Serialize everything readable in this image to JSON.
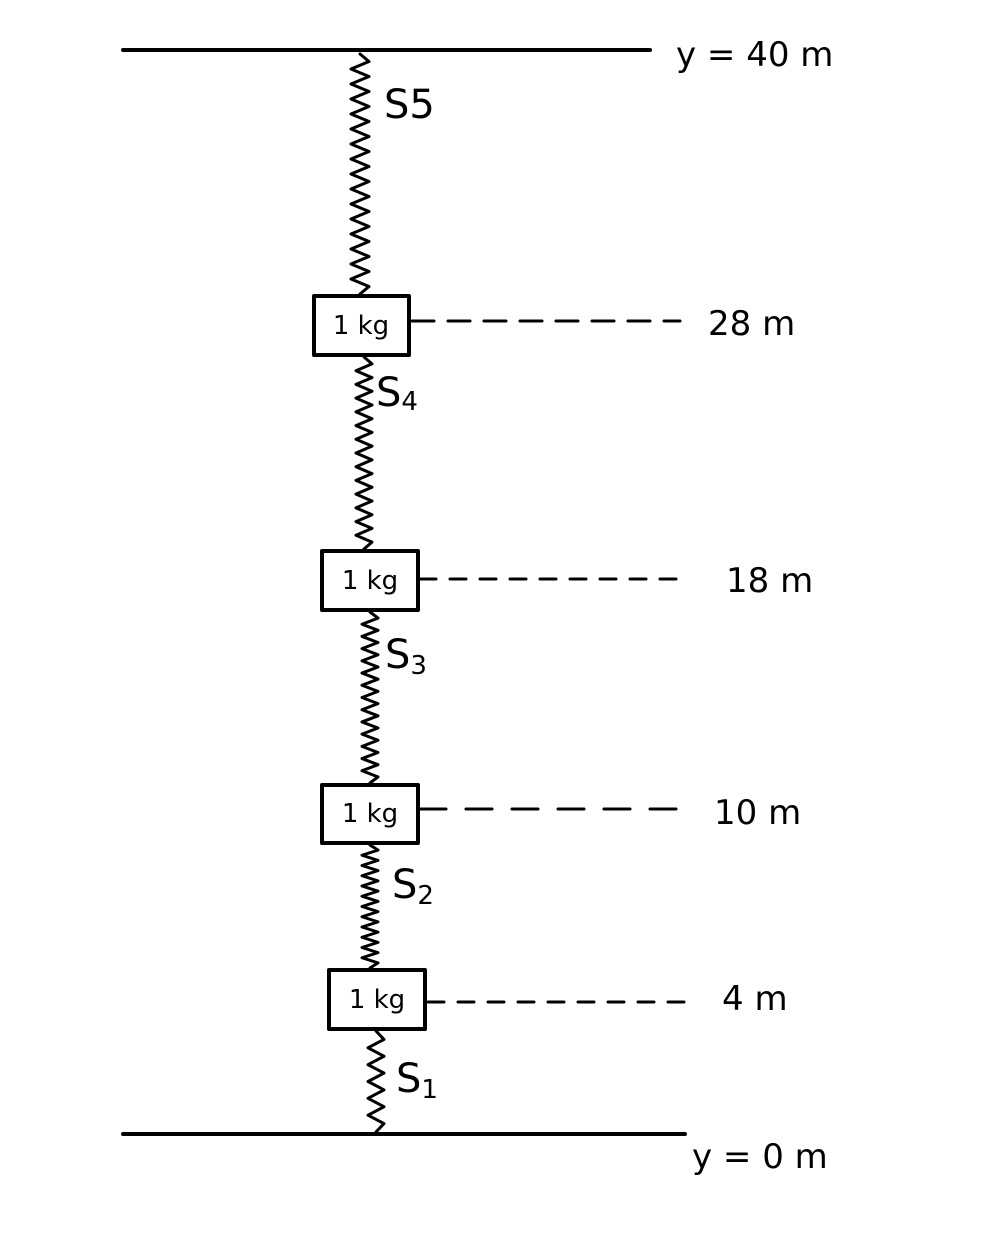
{
  "boundaries": {
    "top_label": "y = 40 m",
    "bottom_label": "y = 0 m"
  },
  "masses": [
    {
      "label": "1 kg",
      "height_label": "28 m"
    },
    {
      "label": "1 kg",
      "height_label": "18 m"
    },
    {
      "label": "1 kg",
      "height_label": "10 m"
    },
    {
      "label": "1 kg",
      "height_label": "4 m"
    }
  ],
  "springs": [
    {
      "letter": "S",
      "index": "5"
    },
    {
      "letter": "S",
      "index": "4"
    },
    {
      "letter": "S",
      "index": "3"
    },
    {
      "letter": "S",
      "index": "2"
    },
    {
      "letter": "S",
      "index": "1"
    }
  ]
}
